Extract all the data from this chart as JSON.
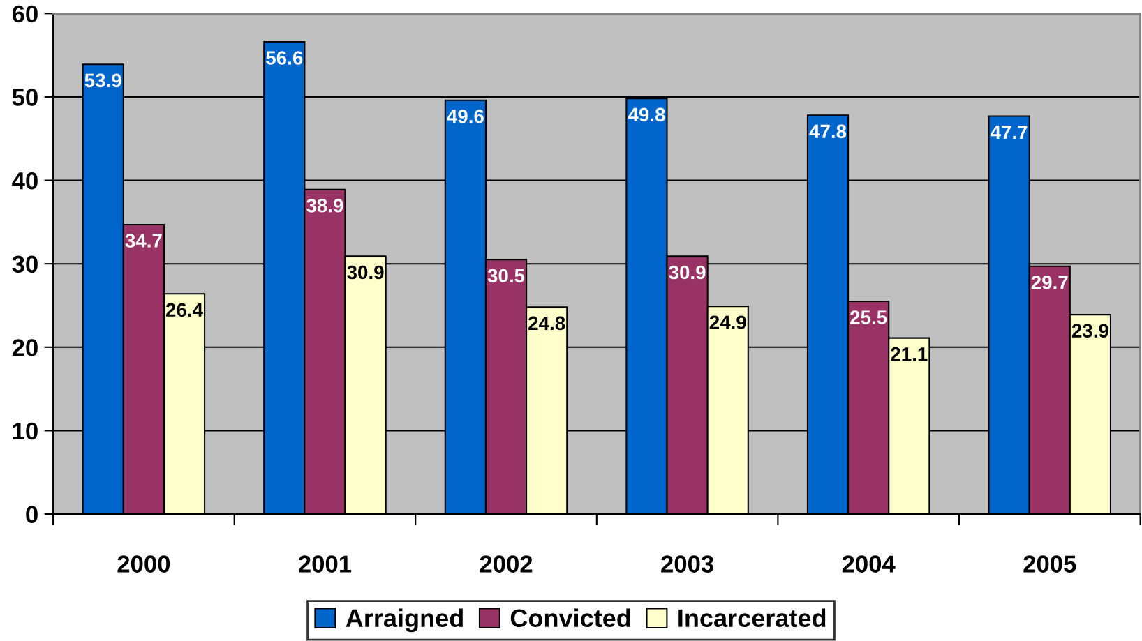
{
  "chart_data": {
    "type": "bar",
    "categories": [
      "2000",
      "2001",
      "2002",
      "2003",
      "2004",
      "2005"
    ],
    "series": [
      {
        "name": "Arraigned",
        "color": "#0066cc",
        "values": [
          53.9,
          56.6,
          49.6,
          49.8,
          47.8,
          47.7
        ]
      },
      {
        "name": "Convicted",
        "color": "#993366",
        "values": [
          34.7,
          38.9,
          30.5,
          30.9,
          25.5,
          29.7
        ]
      },
      {
        "name": "Incarcerated",
        "color": "#ffffcc",
        "values": [
          26.4,
          30.9,
          24.8,
          24.9,
          21.1,
          23.9
        ]
      }
    ],
    "ylim": [
      0,
      60
    ],
    "yticks": [
      0,
      10,
      20,
      30,
      40,
      50,
      60
    ],
    "grid": "y",
    "legend": "bottom",
    "data_labels": true
  }
}
